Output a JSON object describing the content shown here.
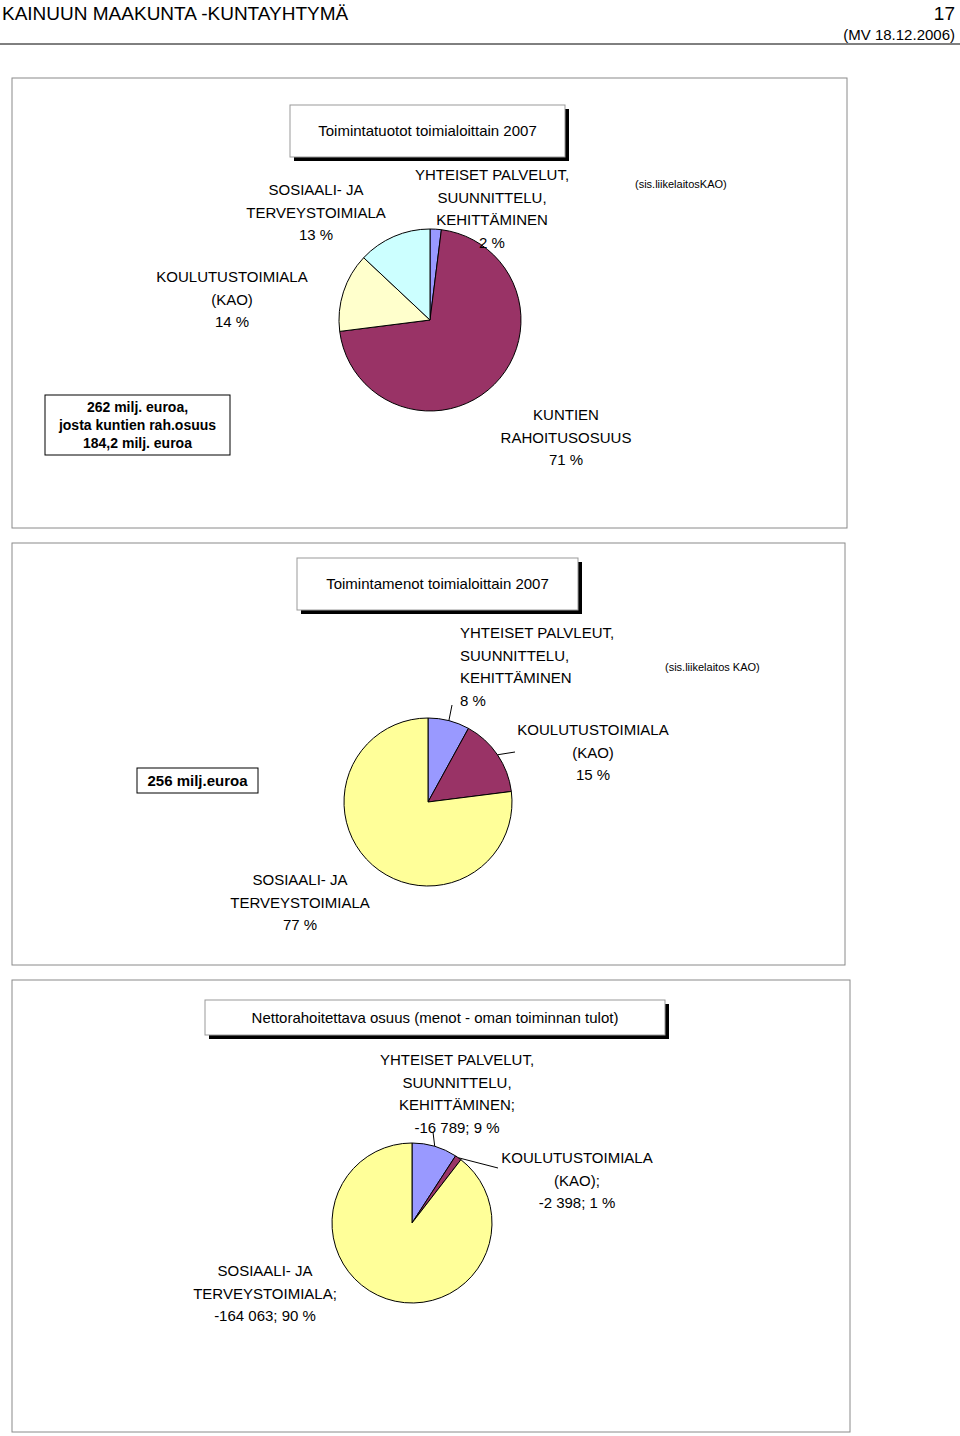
{
  "header": {
    "title": "KAINUUN MAAKUNTA -KUNTAYHTYMÄ",
    "page": "17",
    "date": "(MV 18.12.2006)"
  },
  "chart_data": [
    {
      "type": "pie",
      "title": "Toimintatuotot toimialoittain 2007",
      "categories": [
        "YHTEISET PALVELUT,\nSUUNNITTELU,\nKEHITTÄMINEN",
        "KUNTIEN\nRAHOITUSOSUUS",
        "KOULUTUSTOIMIALA\n(KAO)",
        "SOSIAALI- JA\nTERVEYSTOIMIALA"
      ],
      "values": [
        2,
        71,
        14,
        13
      ],
      "value_labels": [
        "2 %",
        "71 %",
        "14 %",
        "13 %"
      ],
      "colors": [
        "#9999ff",
        "#993366",
        "#ffffcc",
        "#ccffff"
      ],
      "data_labels": true,
      "note": "(sis.liikelaitosKAO)",
      "box_text": "262 milj. euroa,\njosta kuntien rah.osuus\n184,2 milj. euroa"
    },
    {
      "type": "pie",
      "title": "Toimintamenot toimialoittain 2007",
      "categories": [
        "YHTEISET PALVLEUT,\nSUUNNITTELU,\nKEHITTÄMINEN",
        "KOULUTUSTOIMIALA\n(KAO)",
        "SOSIAALI- JA\nTERVEYSTOIMIALA"
      ],
      "values": [
        8,
        15,
        77
      ],
      "value_labels": [
        "8 %",
        "15 %",
        "77 %"
      ],
      "colors": [
        "#9999ff",
        "#993366",
        "#ffff99"
      ],
      "data_labels": true,
      "note": "(sis.liikelaitos KAO)",
      "box_text": "256 milj.euroa"
    },
    {
      "type": "pie",
      "title": "Nettorahoitettava osuus (menot - oman toiminnan tulot)",
      "categories": [
        "YHTEISET PALVELUT,\nSUUNNITTELU,\nKEHITTÄMINEN;",
        "KOULUTUSTOIMIALA\n(KAO);",
        "SOSIAALI- JA\nTERVEYSTOIMIALA;"
      ],
      "values": [
        -16789,
        -2398,
        -164063
      ],
      "value_labels": [
        "-16 789; 9 %",
        "-2 398; 1 %",
        "-164 063; 90 %"
      ],
      "colors": [
        "#9999ff",
        "#993366",
        "#ffff99"
      ],
      "data_labels": true
    }
  ]
}
